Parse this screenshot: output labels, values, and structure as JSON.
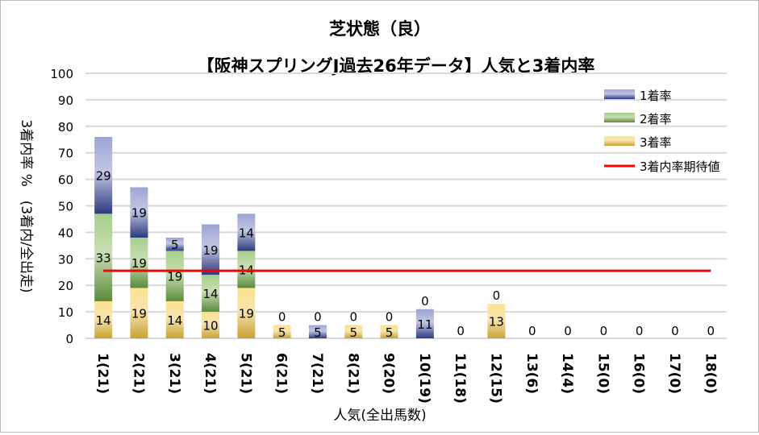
{
  "chart_data": {
    "type": "bar",
    "stacked": true,
    "title": "芝状態（良）",
    "subtitle": "【阪神スプリングJ過去26年データ】人気と3着内率",
    "xlabel": "人気(全出馬数)",
    "ylabel": "3着内率 %　(3着内/全出走)",
    "ylim": [
      0,
      100
    ],
    "yticks": [
      "0",
      "10",
      "20",
      "30",
      "40",
      "50",
      "60",
      "70",
      "80",
      "90",
      "100"
    ],
    "categories": [
      "1(21)",
      "2(21)",
      "3(21)",
      "4(21)",
      "5(21)",
      "6(21)",
      "7(21)",
      "8(21)",
      "9(20)",
      "10(19)",
      "11(18)",
      "12(15)",
      "13(6)",
      "14(4)",
      "15(0)",
      "16(0)",
      "17(0)",
      "18(0)"
    ],
    "series": [
      {
        "name": "3着率",
        "color": "#c9a233",
        "values": [
          14,
          19,
          14,
          10,
          19,
          5,
          0,
          5,
          5,
          0,
          0,
          13,
          0,
          0,
          0,
          0,
          0,
          0
        ]
      },
      {
        "name": "2着率",
        "color": "#5b8a3c",
        "values": [
          33,
          19,
          19,
          14,
          14,
          0,
          0,
          0,
          0,
          0,
          0,
          0,
          0,
          0,
          0,
          0,
          0,
          0
        ]
      },
      {
        "name": "1着率",
        "color": "#2e3a80",
        "values": [
          29,
          19,
          5,
          19,
          14,
          0,
          5,
          0,
          0,
          11,
          0,
          0,
          0,
          0,
          0,
          0,
          0,
          0
        ]
      }
    ],
    "expected_line": {
      "name": "3着内率期待値",
      "color": "#ff0000",
      "value": 25.5
    },
    "legend": "top-right",
    "grid": true
  }
}
